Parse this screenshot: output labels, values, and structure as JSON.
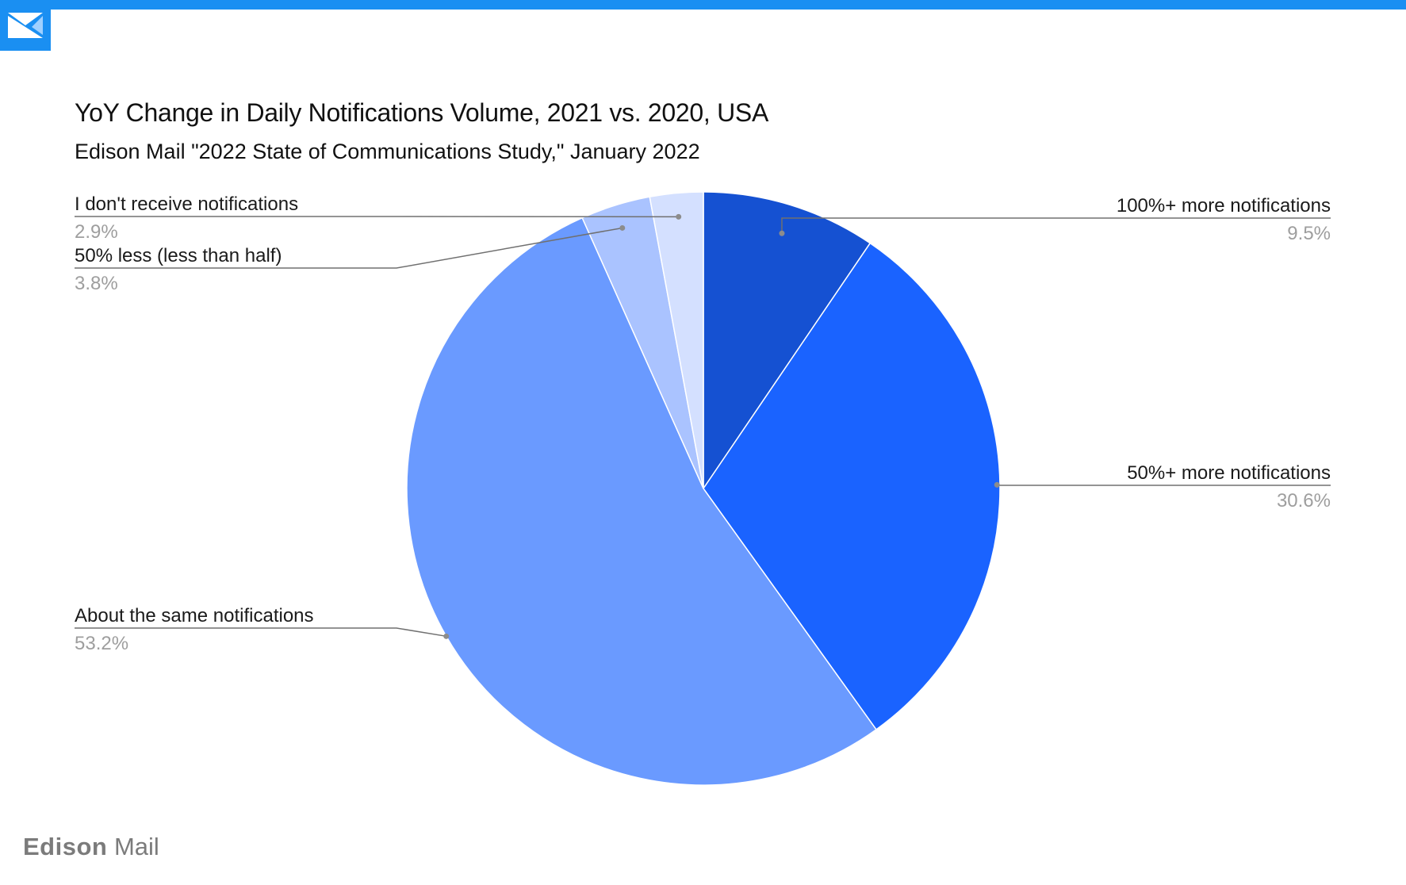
{
  "header": {
    "logo_icon": "envelope-icon",
    "accent_color": "#1a8ff2"
  },
  "chart_title": "YoY Change in Daily Notifications Volume, 2021 vs. 2020, USA",
  "chart_subtitle": "Edison Mail \"2022 State of Communications Study,\" January 2022",
  "footer": {
    "brand_bold": "Edison",
    "brand_light": "Mail"
  },
  "chart_data": {
    "type": "pie",
    "title": "YoY Change in Daily Notifications Volume, 2021 vs. 2020, USA",
    "subtitle": "Edison Mail \"2022 State of Communications Study,\" January 2022",
    "start_angle": "12 o'clock, clockwise",
    "slices": [
      {
        "label": "100%+ more notifications",
        "value": 9.5,
        "display": "9.5%",
        "color": "#1551d2",
        "label_side": "right"
      },
      {
        "label": "50%+ more notifications",
        "value": 30.6,
        "display": "30.6%",
        "color": "#1a63ff",
        "label_side": "right"
      },
      {
        "label": "About the same notifications",
        "value": 53.2,
        "display": "53.2%",
        "color": "#6a9aff",
        "label_side": "left"
      },
      {
        "label": "50% less (less than half)",
        "value": 3.8,
        "display": "3.8%",
        "color": "#aac3ff",
        "label_side": "left"
      },
      {
        "label": "I don't receive notifications",
        "value": 2.9,
        "display": "2.9%",
        "color": "#d4e0ff",
        "label_side": "left"
      }
    ]
  }
}
